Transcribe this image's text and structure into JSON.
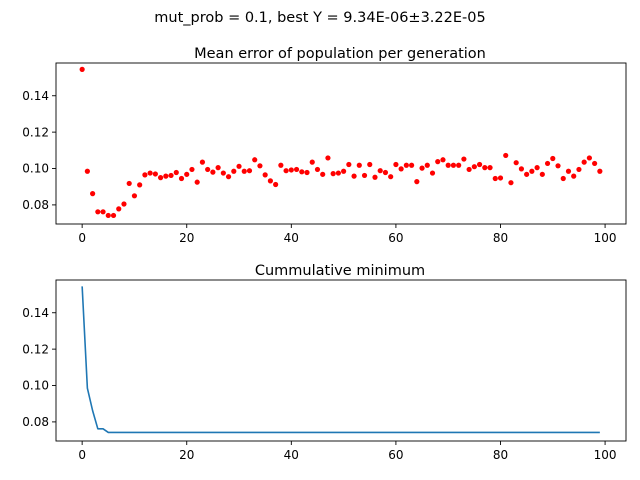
{
  "figure": {
    "suptitle": "mut_prob = 0.1, best Y = 9.34E-06±3.22E-05"
  },
  "chart_data": [
    {
      "type": "scatter",
      "title": "Mean error of population per generation",
      "xlabel": "",
      "ylabel": "",
      "xlim": [
        -5,
        104
      ],
      "ylim": [
        0.0695,
        0.158
      ],
      "xticks": [
        0,
        20,
        40,
        60,
        80,
        100
      ],
      "yticks": [
        0.08,
        0.1,
        0.12,
        0.14
      ],
      "xtick_labels": [
        "0",
        "20",
        "40",
        "60",
        "80",
        "100"
      ],
      "ytick_labels": [
        "0.08",
        "0.10",
        "0.12",
        "0.14"
      ],
      "grid": false,
      "color": "#ff0000",
      "series": [
        {
          "x": [
            0,
            1,
            2,
            3,
            4,
            5,
            6,
            7,
            8,
            9,
            10,
            11,
            12,
            13,
            14,
            15,
            16,
            17,
            18,
            19,
            20,
            21,
            22,
            23,
            24,
            25,
            26,
            27,
            28,
            29,
            30,
            31,
            32,
            33,
            34,
            35,
            36,
            37,
            38,
            39,
            40,
            41,
            42,
            43,
            44,
            45,
            46,
            47,
            48,
            49,
            50,
            51,
            52,
            53,
            54,
            55,
            56,
            57,
            58,
            59,
            60,
            61,
            62,
            63,
            64,
            65,
            66,
            67,
            68,
            69,
            70,
            71,
            72,
            73,
            74,
            75,
            76,
            77,
            78,
            79,
            80,
            81,
            82,
            83,
            84,
            85,
            86,
            87,
            88,
            89,
            90,
            91,
            92,
            93,
            94,
            95,
            96,
            97,
            98,
            99
          ],
          "values": [
            0.1545,
            0.0985,
            0.0862,
            0.0762,
            0.0762,
            0.0742,
            0.0742,
            0.0778,
            0.0805,
            0.0918,
            0.085,
            0.091,
            0.0965,
            0.0975,
            0.097,
            0.095,
            0.0958,
            0.0962,
            0.0978,
            0.0945,
            0.0968,
            0.0995,
            0.0925,
            0.1035,
            0.0995,
            0.098,
            0.1005,
            0.0975,
            0.0955,
            0.0985,
            0.1012,
            0.0985,
            0.0988,
            0.1048,
            0.1015,
            0.0965,
            0.0932,
            0.0912,
            0.1018,
            0.0988,
            0.0992,
            0.0995,
            0.0982,
            0.0978,
            0.1035,
            0.0995,
            0.0968,
            0.1058,
            0.0972,
            0.0975,
            0.0985,
            0.1022,
            0.0958,
            0.1018,
            0.0962,
            0.1022,
            0.0952,
            0.0988,
            0.0978,
            0.0955,
            0.1022,
            0.0998,
            0.1018,
            0.1018,
            0.0928,
            0.1002,
            0.1018,
            0.0975,
            0.1038,
            0.1048,
            0.1018,
            0.1018,
            0.1018,
            0.1052,
            0.0995,
            0.101,
            0.1022,
            0.1005,
            0.1005,
            0.0945,
            0.0948,
            0.1072,
            0.0922,
            0.1032,
            0.0998,
            0.0968,
            0.0985,
            0.1005,
            0.0968,
            0.1028,
            0.1055,
            0.1015,
            0.0945,
            0.0985,
            0.0958,
            0.0995,
            0.1035,
            0.1058,
            0.1028,
            0.0985
          ]
        }
      ]
    },
    {
      "type": "line",
      "title": "Cummulative minimum",
      "xlabel": "",
      "ylabel": "",
      "xlim": [
        -5,
        104
      ],
      "ylim": [
        0.0695,
        0.158
      ],
      "xticks": [
        0,
        20,
        40,
        60,
        80,
        100
      ],
      "yticks": [
        0.08,
        0.1,
        0.12,
        0.14
      ],
      "xtick_labels": [
        "0",
        "20",
        "40",
        "60",
        "80",
        "100"
      ],
      "ytick_labels": [
        "0.08",
        "0.10",
        "0.12",
        "0.14"
      ],
      "grid": false,
      "color": "#1f77b4",
      "series": [
        {
          "x": [
            0,
            1,
            2,
            3,
            4,
            5,
            6,
            7,
            8,
            9,
            10,
            11,
            12,
            13,
            14,
            15,
            16,
            17,
            18,
            19,
            20,
            21,
            22,
            23,
            24,
            25,
            26,
            27,
            28,
            29,
            30,
            31,
            32,
            33,
            34,
            35,
            36,
            37,
            38,
            39,
            40,
            41,
            42,
            43,
            44,
            45,
            46,
            47,
            48,
            49,
            50,
            51,
            52,
            53,
            54,
            55,
            56,
            57,
            58,
            59,
            60,
            61,
            62,
            63,
            64,
            65,
            66,
            67,
            68,
            69,
            70,
            71,
            72,
            73,
            74,
            75,
            76,
            77,
            78,
            79,
            80,
            81,
            82,
            83,
            84,
            85,
            86,
            87,
            88,
            89,
            90,
            91,
            92,
            93,
            94,
            95,
            96,
            97,
            98,
            99
          ],
          "values": [
            0.1545,
            0.0985,
            0.0862,
            0.0762,
            0.0762,
            0.0742,
            0.0742,
            0.0742,
            0.0742,
            0.0742,
            0.0742,
            0.0742,
            0.0742,
            0.0742,
            0.0742,
            0.0742,
            0.0742,
            0.0742,
            0.0742,
            0.0742,
            0.0742,
            0.0742,
            0.0742,
            0.0742,
            0.0742,
            0.0742,
            0.0742,
            0.0742,
            0.0742,
            0.0742,
            0.0742,
            0.0742,
            0.0742,
            0.0742,
            0.0742,
            0.0742,
            0.0742,
            0.0742,
            0.0742,
            0.0742,
            0.0742,
            0.0742,
            0.0742,
            0.0742,
            0.0742,
            0.0742,
            0.0742,
            0.0742,
            0.0742,
            0.0742,
            0.0742,
            0.0742,
            0.0742,
            0.0742,
            0.0742,
            0.0742,
            0.0742,
            0.0742,
            0.0742,
            0.0742,
            0.0742,
            0.0742,
            0.0742,
            0.0742,
            0.0742,
            0.0742,
            0.0742,
            0.0742,
            0.0742,
            0.0742,
            0.0742,
            0.0742,
            0.0742,
            0.0742,
            0.0742,
            0.0742,
            0.0742,
            0.0742,
            0.0742,
            0.0742,
            0.0742,
            0.0742,
            0.0742,
            0.0742,
            0.0742,
            0.0742,
            0.0742,
            0.0742,
            0.0742,
            0.0742,
            0.0742,
            0.0742,
            0.0742,
            0.0742,
            0.0742,
            0.0742,
            0.0742,
            0.0742,
            0.0742,
            0.0742
          ]
        }
      ]
    }
  ]
}
